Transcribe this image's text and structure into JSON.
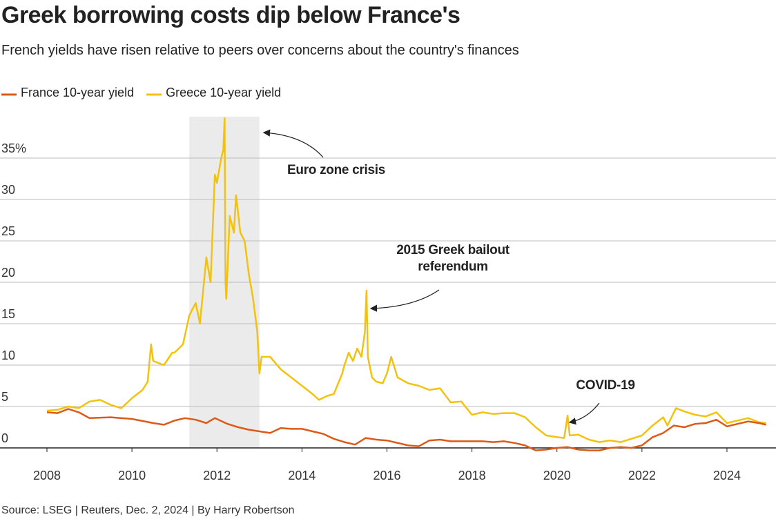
{
  "chart_data": {
    "type": "line",
    "title": "Greek borrowing costs dip below France's",
    "subtitle": "French yields have risen relative to peers over concerns about the country's finances",
    "source": "Source: LSEG | Reuters, Dec. 2, 2024 | By Harry Robertson",
    "xlim": [
      2008,
      2025
    ],
    "xticks": [
      2008,
      2010,
      2012,
      2014,
      2016,
      2018,
      2020,
      2022,
      2024
    ],
    "ylim": [
      -1,
      40
    ],
    "yticks": [
      0,
      5,
      10,
      15,
      20,
      25,
      30,
      {
        "value": 35,
        "label": "35%"
      }
    ],
    "grid": true,
    "legend": "top-left",
    "highlight_x": [
      2011.35,
      2013.0
    ],
    "highlight_color": "#ebebeb",
    "annotations": [
      {
        "lines": [
          "Euro zone crisis"
        ]
      },
      {
        "lines": [
          "2015 Greek bailout",
          "referendum"
        ]
      },
      {
        "lines": [
          "COVID-19"
        ]
      }
    ],
    "series": [
      {
        "name": "France 10-year yield",
        "color": "#dd5a16",
        "x": [
          2008.0,
          2008.25,
          2008.5,
          2008.75,
          2009.0,
          2009.5,
          2010.0,
          2010.5,
          2010.75,
          2011.0,
          2011.25,
          2011.5,
          2011.75,
          2011.95,
          2012.25,
          2012.5,
          2012.75,
          2013.0,
          2013.25,
          2013.5,
          2013.75,
          2014.0,
          2014.5,
          2014.75,
          2015.0,
          2015.25,
          2015.5,
          2015.75,
          2016.0,
          2016.5,
          2016.75,
          2017.0,
          2017.25,
          2017.5,
          2017.75,
          2018.0,
          2018.25,
          2018.5,
          2018.75,
          2019.0,
          2019.25,
          2019.5,
          2019.75,
          2020.0,
          2020.25,
          2020.5,
          2020.75,
          2021.0,
          2021.25,
          2021.5,
          2021.75,
          2022.0,
          2022.25,
          2022.5,
          2022.75,
          2023.0,
          2023.25,
          2023.5,
          2023.75,
          2024.0,
          2024.25,
          2024.5,
          2024.75,
          2024.92
        ],
        "values": [
          4.3,
          4.2,
          4.7,
          4.3,
          3.6,
          3.7,
          3.5,
          3.0,
          2.8,
          3.3,
          3.6,
          3.4,
          3.0,
          3.6,
          2.9,
          2.5,
          2.2,
          2.0,
          1.8,
          2.4,
          2.3,
          2.3,
          1.7,
          1.1,
          0.7,
          0.4,
          1.2,
          1.0,
          0.9,
          0.3,
          0.2,
          0.9,
          1.0,
          0.8,
          0.8,
          0.8,
          0.8,
          0.7,
          0.8,
          0.6,
          0.3,
          -0.3,
          -0.2,
          0.0,
          0.1,
          -0.2,
          -0.3,
          -0.3,
          0.0,
          0.1,
          0.0,
          0.3,
          1.3,
          1.8,
          2.7,
          2.5,
          2.9,
          3.0,
          3.4,
          2.6,
          2.9,
          3.2,
          3.0,
          2.8
        ]
      },
      {
        "name": "Greece 10-year yield",
        "color": "#f2c20f",
        "x": [
          2008.0,
          2008.25,
          2008.5,
          2008.75,
          2009.0,
          2009.25,
          2009.5,
          2009.75,
          2010.0,
          2010.25,
          2010.37,
          2010.45,
          2010.5,
          2010.75,
          2010.95,
          2011.0,
          2011.2,
          2011.35,
          2011.5,
          2011.6,
          2011.75,
          2011.85,
          2011.95,
          2012.0,
          2012.1,
          2012.15,
          2012.18,
          2012.2,
          2012.22,
          2012.3,
          2012.4,
          2012.45,
          2012.55,
          2012.65,
          2012.75,
          2012.85,
          2012.95,
          2013.0,
          2013.05,
          2013.25,
          2013.5,
          2013.75,
          2014.0,
          2014.25,
          2014.4,
          2014.6,
          2014.75,
          2014.95,
          2015.0,
          2015.1,
          2015.2,
          2015.3,
          2015.4,
          2015.48,
          2015.52,
          2015.55,
          2015.65,
          2015.75,
          2015.9,
          2016.0,
          2016.1,
          2016.25,
          2016.5,
          2016.75,
          2017.0,
          2017.25,
          2017.5,
          2017.75,
          2018.0,
          2018.25,
          2018.5,
          2018.75,
          2019.0,
          2019.25,
          2019.5,
          2019.75,
          2020.0,
          2020.17,
          2020.25,
          2020.3,
          2020.5,
          2020.75,
          2021.0,
          2021.25,
          2021.5,
          2021.75,
          2022.0,
          2022.25,
          2022.5,
          2022.6,
          2022.8,
          2023.0,
          2023.25,
          2023.5,
          2023.75,
          2024.0,
          2024.25,
          2024.5,
          2024.75,
          2024.92
        ],
        "values": [
          4.5,
          4.6,
          5.0,
          4.8,
          5.6,
          5.8,
          5.2,
          4.8,
          6.0,
          7.0,
          8.0,
          12.5,
          10.5,
          10.0,
          11.5,
          11.5,
          12.5,
          16.0,
          17.5,
          15.0,
          23.0,
          20.0,
          33.0,
          32.0,
          35.0,
          36.0,
          39.8,
          20.0,
          18.0,
          28.0,
          26.0,
          30.5,
          26.0,
          25.0,
          21.0,
          18.0,
          14.0,
          9.0,
          11.0,
          11.0,
          9.5,
          8.5,
          7.5,
          6.5,
          5.8,
          6.3,
          6.5,
          9.0,
          10.0,
          11.5,
          10.5,
          12.0,
          11.0,
          14.0,
          19.0,
          11.0,
          8.5,
          8.0,
          7.8,
          9.0,
          11.0,
          8.5,
          7.8,
          7.5,
          7.0,
          7.2,
          5.5,
          5.6,
          4.0,
          4.3,
          4.1,
          4.2,
          4.2,
          3.7,
          2.5,
          1.5,
          1.3,
          1.2,
          3.9,
          1.5,
          1.6,
          1.0,
          0.7,
          0.9,
          0.7,
          1.1,
          1.5,
          2.7,
          3.7,
          2.7,
          4.8,
          4.4,
          4.0,
          3.8,
          4.3,
          3.0,
          3.3,
          3.6,
          3.1,
          3.0
        ]
      }
    ]
  }
}
